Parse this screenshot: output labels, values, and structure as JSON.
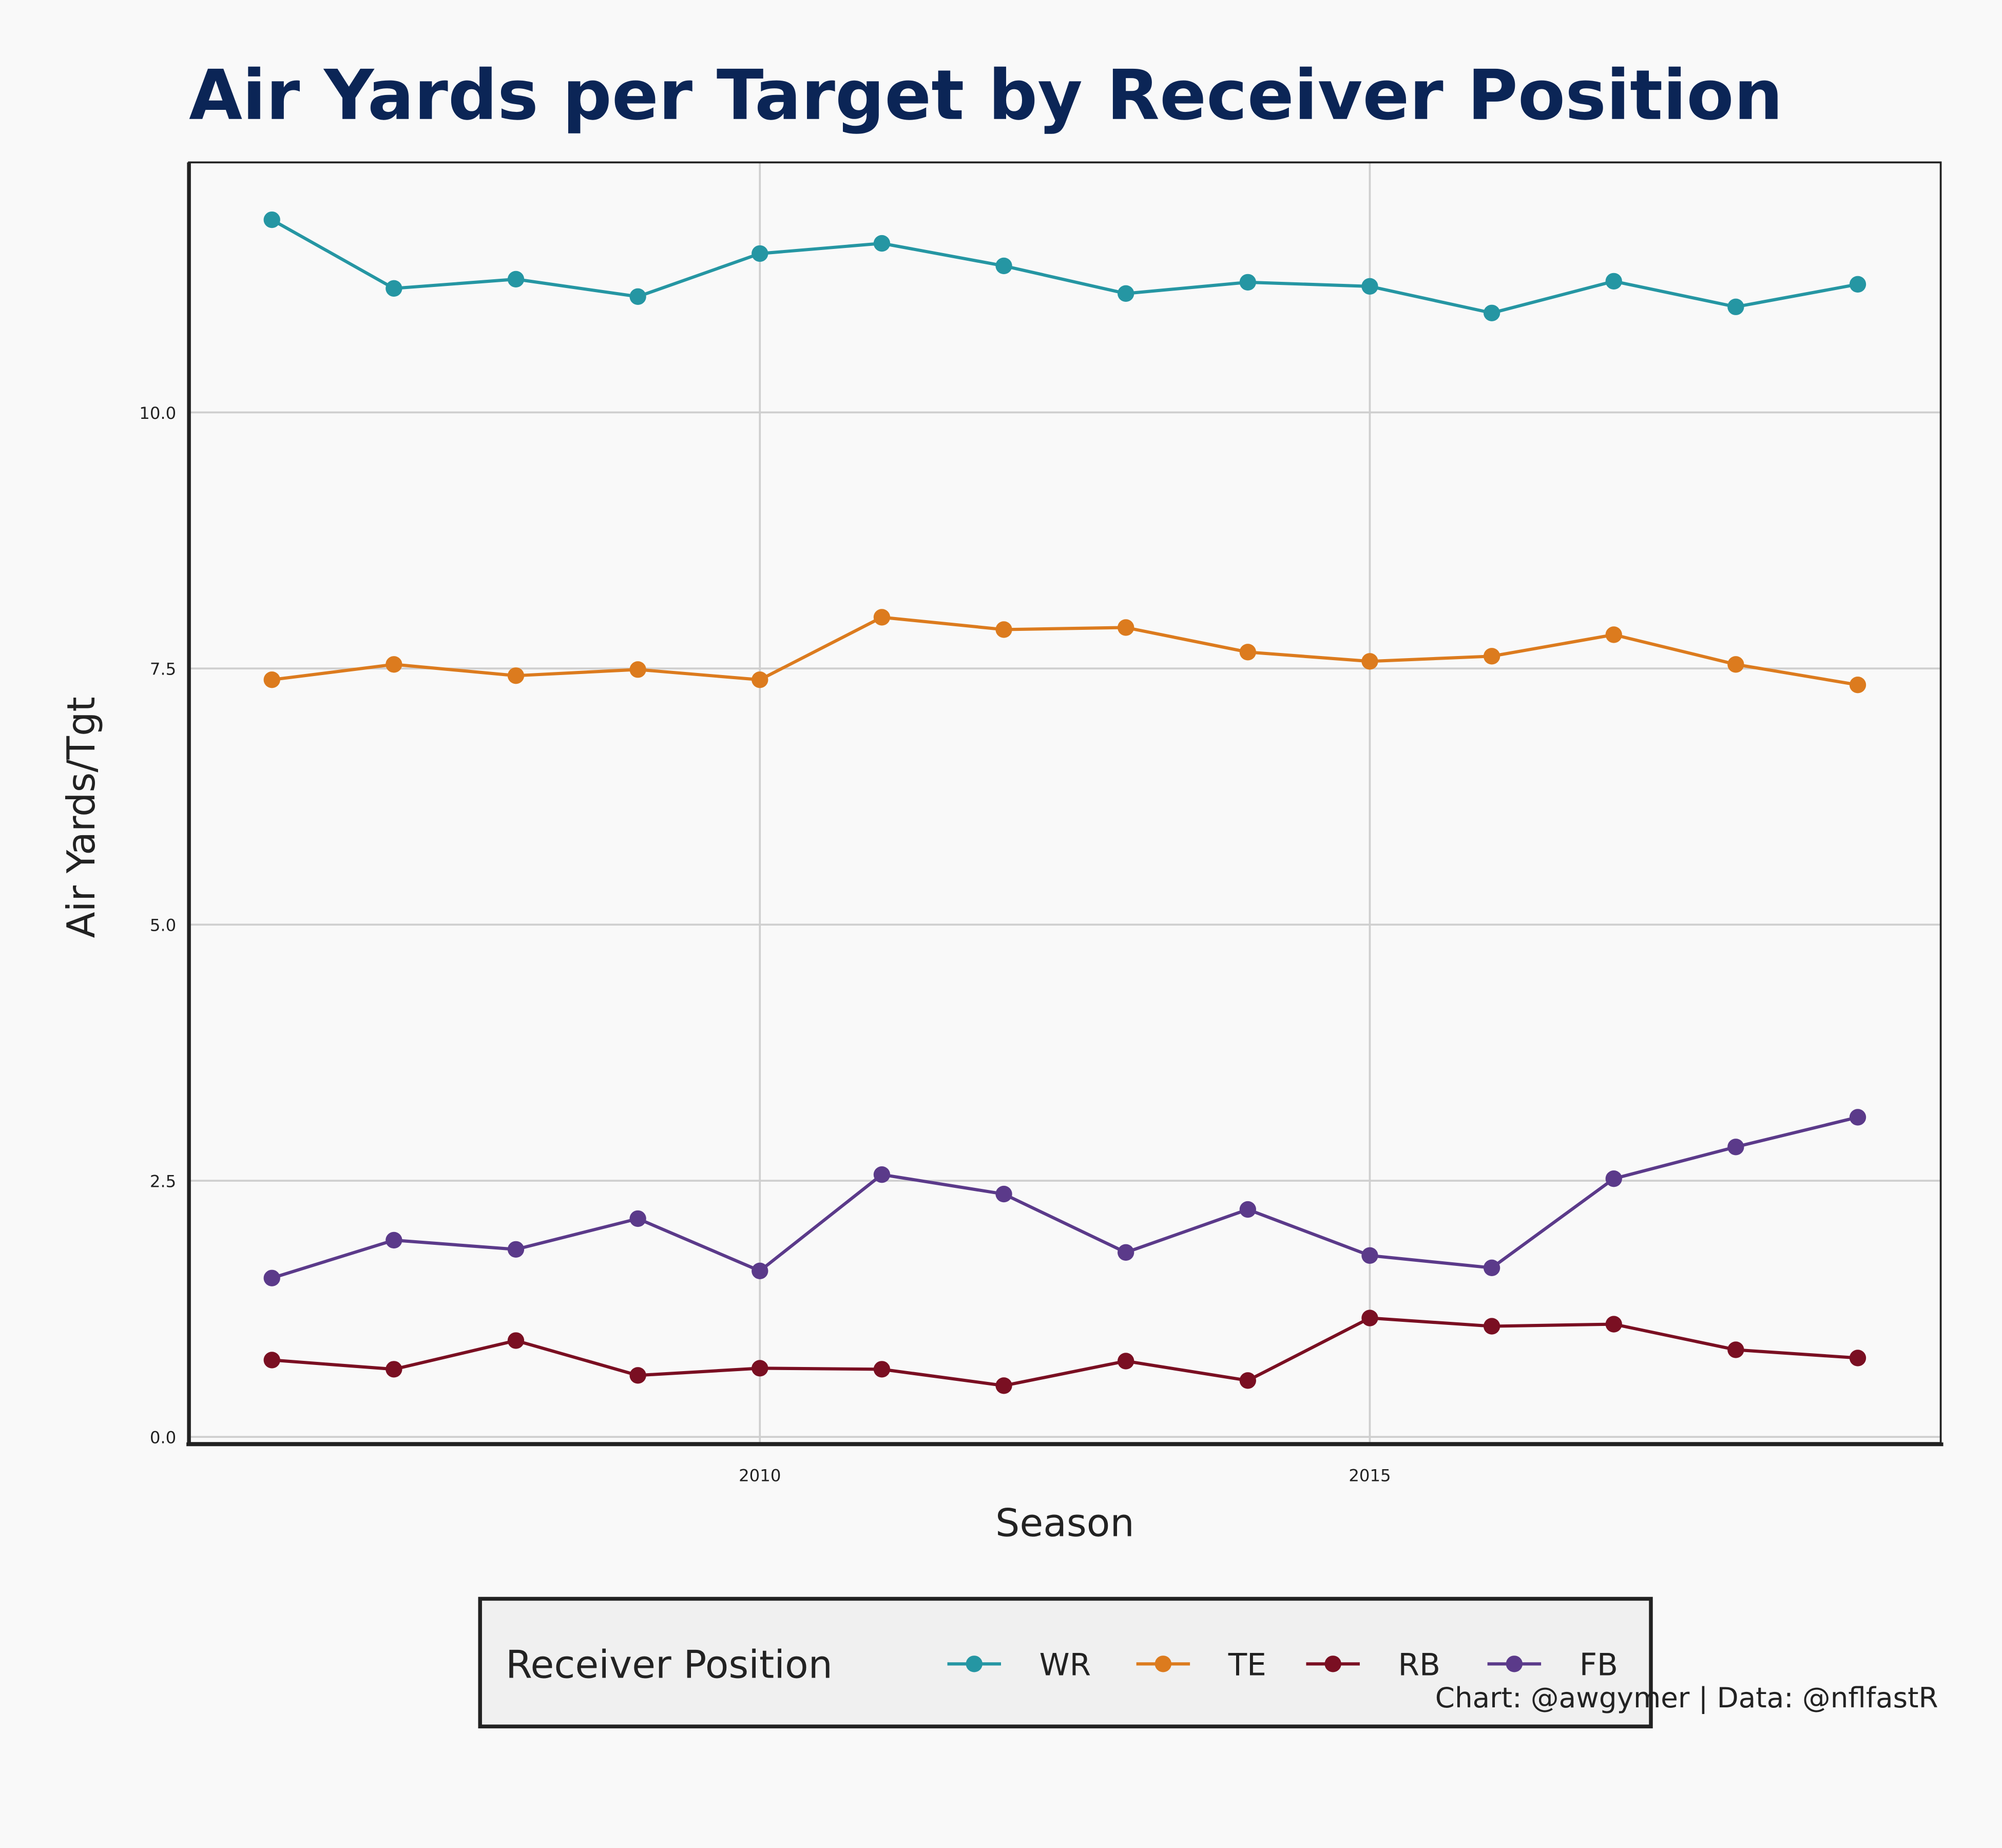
{
  "chart_data": {
    "type": "line",
    "title": "Air Yards per Target by Receiver Position",
    "xlabel": "Season",
    "ylabel": "Air Yards/Tgt",
    "x": [
      2006,
      2007,
      2008,
      2009,
      2010,
      2011,
      2012,
      2013,
      2014,
      2015,
      2016,
      2017,
      2018,
      2019
    ],
    "xlim": [
      2005.32,
      2019.68
    ],
    "ylim": [
      -0.06,
      12.44
    ],
    "xticks": [
      {
        "value": 2010,
        "label": "2010"
      },
      {
        "value": 2015,
        "label": "2015"
      }
    ],
    "yticks": [
      {
        "value": 0,
        "label": "0.0"
      },
      {
        "value": 2.5,
        "label": "2.5"
      },
      {
        "value": 5,
        "label": "5.0"
      },
      {
        "value": 7.5,
        "label": "7.5"
      },
      {
        "value": 10,
        "label": "10.0"
      }
    ],
    "grid": true,
    "legend_title": "Receiver Position",
    "legend_position": "bottom",
    "series": [
      {
        "name": "WR",
        "color": "#2596a3",
        "values": [
          11.88,
          11.21,
          11.3,
          11.13,
          11.55,
          11.65,
          11.43,
          11.16,
          11.27,
          11.23,
          10.97,
          11.28,
          11.03,
          11.25
        ]
      },
      {
        "name": "TE",
        "color": "#dc7b1e",
        "values": [
          7.39,
          7.54,
          7.43,
          7.49,
          7.39,
          8.0,
          7.88,
          7.9,
          7.66,
          7.57,
          7.62,
          7.83,
          7.54,
          7.34
        ]
      },
      {
        "name": "RB",
        "color": "#7a0f22",
        "values": [
          0.75,
          0.66,
          0.94,
          0.6,
          0.67,
          0.66,
          0.5,
          0.74,
          0.55,
          1.16,
          1.08,
          1.1,
          0.85,
          0.77
        ]
      },
      {
        "name": "FB",
        "color": "#5b3a8a",
        "values": [
          1.55,
          1.92,
          1.83,
          2.13,
          1.62,
          2.56,
          2.37,
          1.8,
          2.22,
          1.77,
          1.65,
          2.52,
          2.83,
          3.12
        ]
      }
    ],
    "caption": "Chart: @awgymer | Data: @nflfastR"
  }
}
